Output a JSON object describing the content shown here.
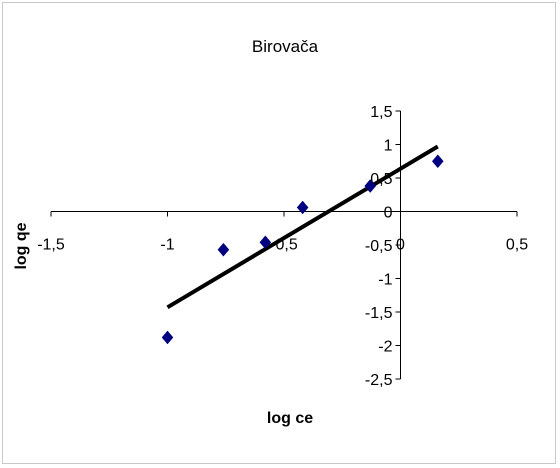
{
  "chart_data": {
    "type": "scatter",
    "title": "Birovača",
    "xlabel": "log ce",
    "ylabel": "log qe",
    "xlim": [
      -1.5,
      0.5
    ],
    "ylim": [
      -2.5,
      1.5
    ],
    "x_ticks": [
      -1.5,
      -1,
      -0.5,
      0,
      0.5
    ],
    "y_ticks": [
      1.5,
      1,
      0.5,
      0,
      -0.5,
      -1,
      -1.5,
      -2,
      -2.5
    ],
    "x_tick_labels": [
      "-1,5",
      "-1",
      "-0,5",
      "0",
      "0,5"
    ],
    "y_tick_labels": [
      "1,5",
      "1",
      "0,5",
      "0",
      "-0,5",
      "-1",
      "-1,5",
      "-2",
      "-2,5"
    ],
    "grid": false,
    "legend": "none",
    "series": [
      {
        "x": [
          -1.0,
          -0.76,
          -0.58,
          -0.42,
          -0.13,
          0.16
        ],
        "y": [
          -1.88,
          -0.57,
          -0.46,
          0.06,
          0.38,
          0.75
        ],
        "marker": "diamond",
        "color": "#000080"
      }
    ],
    "trendline": {
      "x": [
        -1.0,
        0.16
      ],
      "y": [
        -1.43,
        0.97
      ],
      "color": "#000000"
    }
  }
}
